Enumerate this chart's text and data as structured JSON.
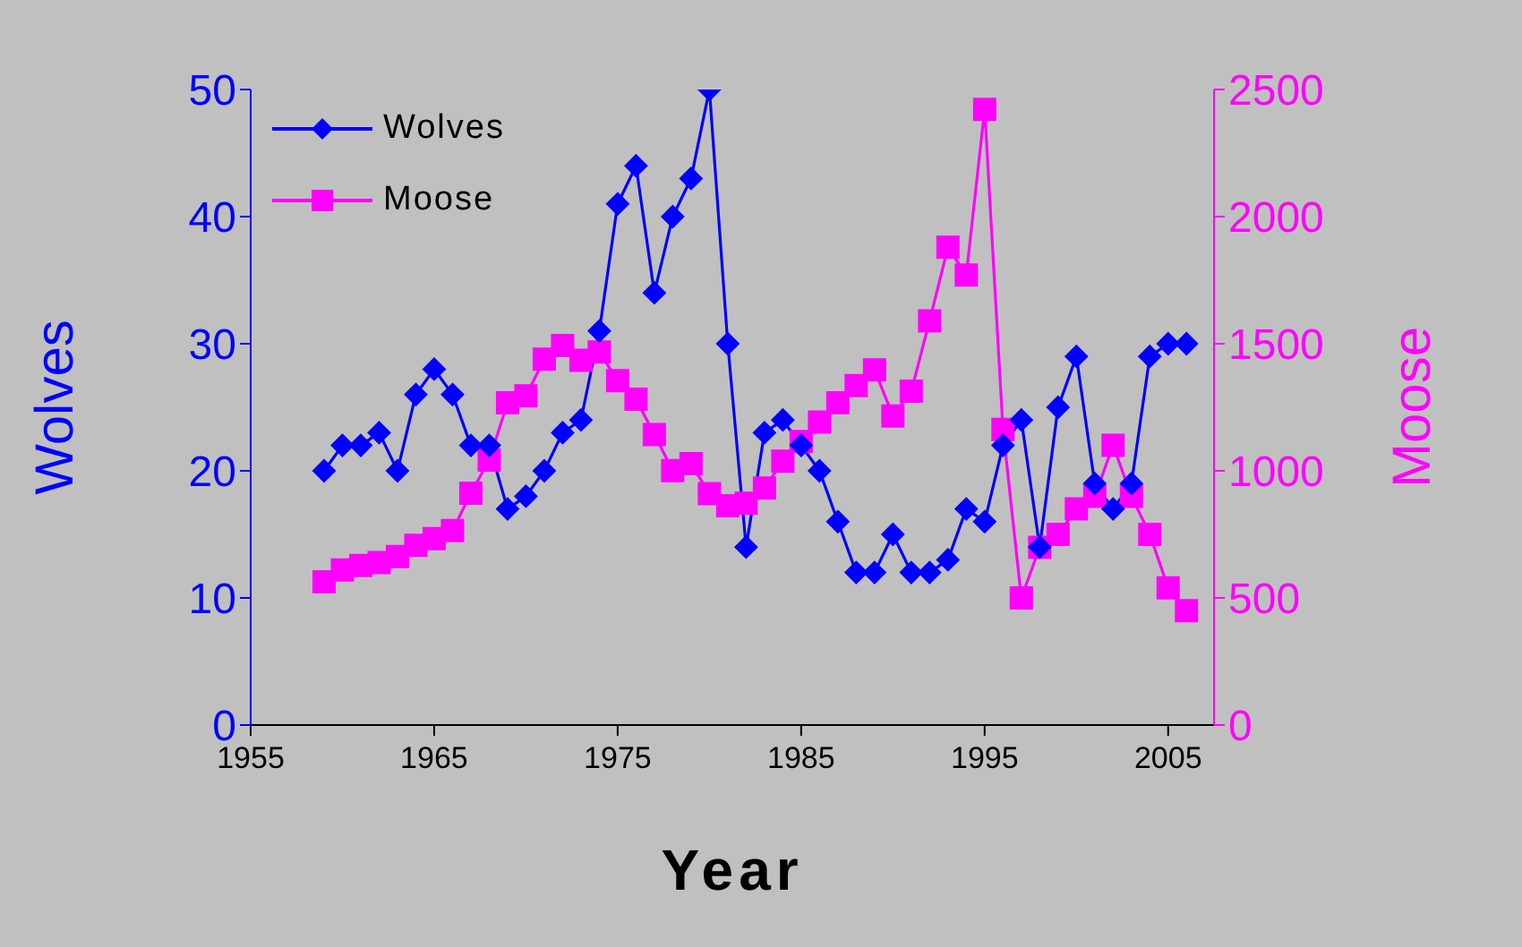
{
  "chart_data": {
    "type": "line",
    "xlabel": "Year",
    "ylabel": "Wolves",
    "y2label": "Moose",
    "x": [
      1959,
      1960,
      1961,
      1962,
      1963,
      1964,
      1965,
      1966,
      1967,
      1968,
      1969,
      1970,
      1971,
      1972,
      1973,
      1974,
      1975,
      1976,
      1977,
      1978,
      1979,
      1980,
      1981,
      1982,
      1983,
      1984,
      1985,
      1986,
      1987,
      1988,
      1989,
      1990,
      1991,
      1992,
      1993,
      1994,
      1995,
      1996,
      1997,
      1998,
      1999,
      2000,
      2001,
      2002,
      2003,
      2004,
      2005,
      2006
    ],
    "series": [
      {
        "name": "Wolves",
        "color": "#0000ff",
        "marker": "diamond",
        "values": [
          20,
          22,
          22,
          23,
          20,
          26,
          28,
          26,
          22,
          22,
          17,
          18,
          20,
          23,
          24,
          31,
          41,
          44,
          34,
          40,
          43,
          50,
          30,
          14,
          23,
          24,
          22,
          20,
          16,
          12,
          12,
          15,
          12,
          12,
          13,
          17,
          16,
          22,
          24,
          14,
          25,
          29,
          19,
          17,
          19,
          29,
          30,
          30
        ]
      },
      {
        "name": "Moose",
        "color": "#ff00ff",
        "marker": "square",
        "axis": "y2",
        "values": [
          563,
          610,
          628,
          639,
          663,
          707,
          733,
          765,
          912,
          1042,
          1268,
          1295,
          1439,
          1493,
          1435,
          1467,
          1355,
          1282,
          1143,
          1001,
          1028,
          910,
          863,
          872,
          932,
          1038,
          1115,
          1192,
          1268,
          1335,
          1397,
          1216,
          1313,
          1590,
          1879,
          1770,
          2422,
          1163,
          500,
          699,
          750,
          850,
          900,
          1100,
          900,
          750,
          540,
          450
        ]
      }
    ],
    "xlim": [
      1955,
      2007.5
    ],
    "xticks": [
      1955,
      1965,
      1975,
      1985,
      1995,
      2005
    ],
    "ylim": [
      0,
      50
    ],
    "yticks": [
      0,
      10,
      20,
      30,
      40,
      50
    ],
    "y2lim": [
      0,
      2500
    ],
    "y2ticks": [
      0,
      500,
      1000,
      1500,
      2000,
      2500
    ],
    "grid": false,
    "legend": "top left"
  }
}
